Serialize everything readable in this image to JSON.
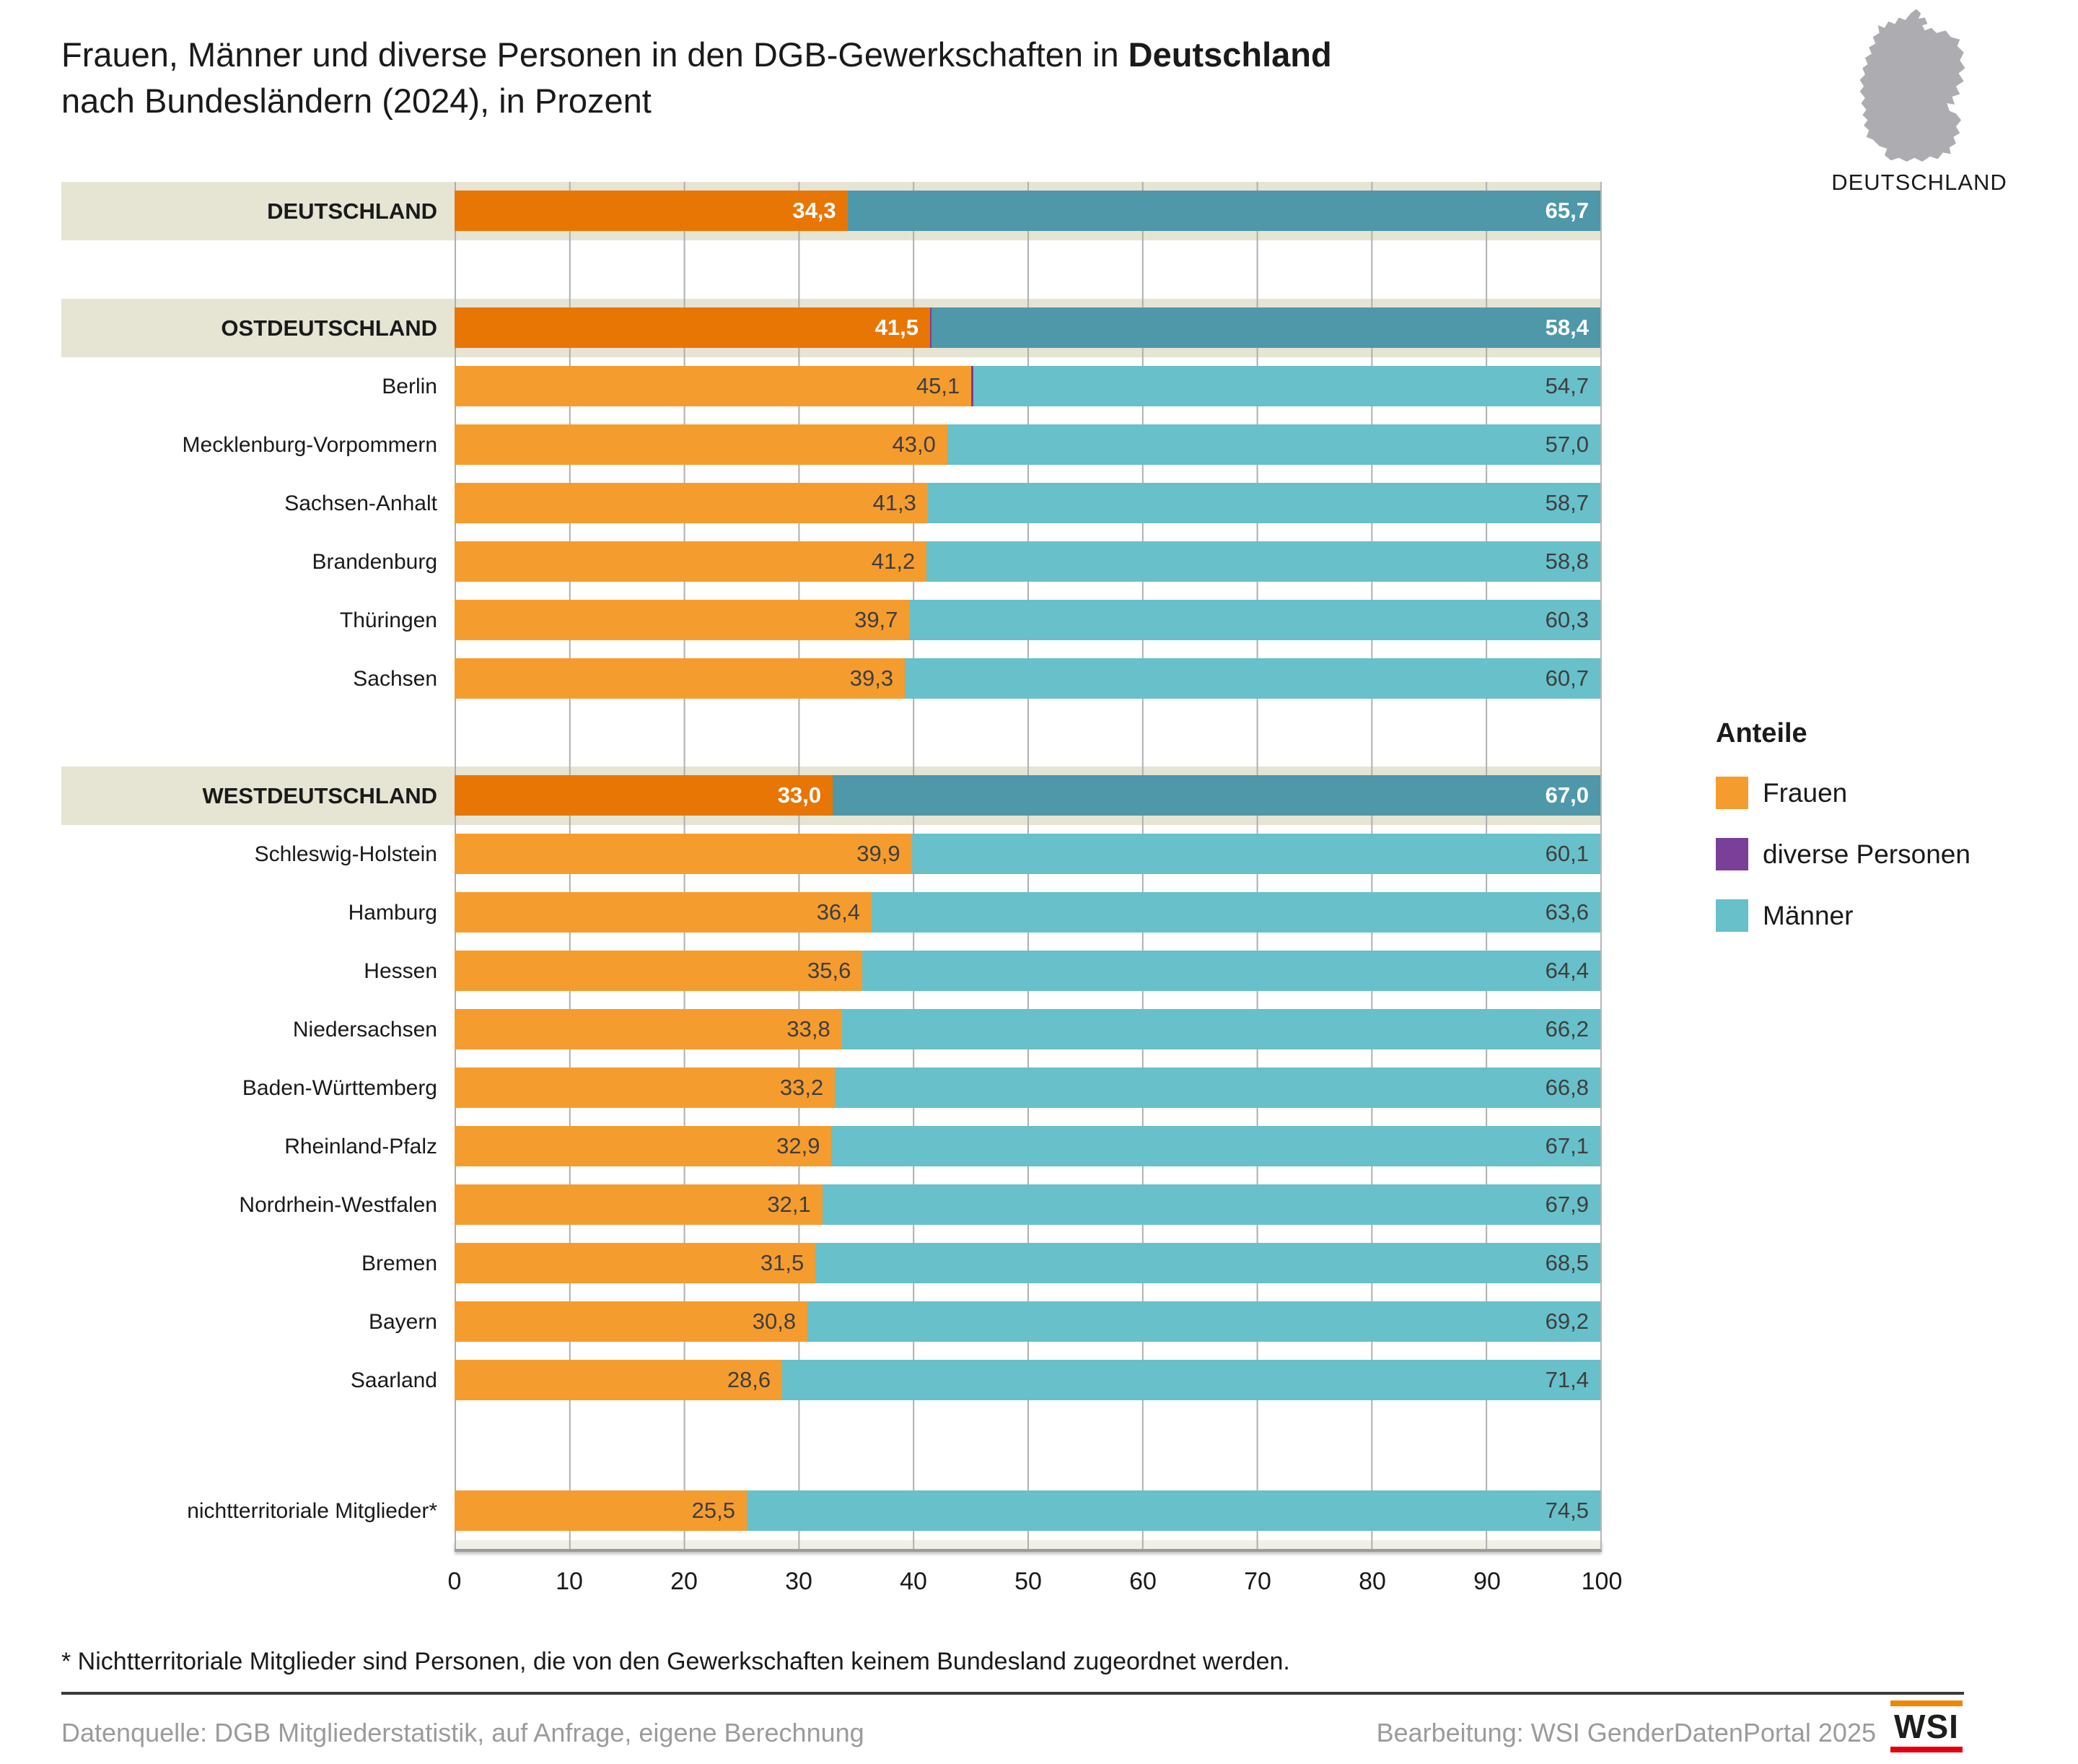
{
  "title": {
    "line1_prefix": "Frauen, Männer und diverse Personen in den DGB-Gewerkschaften in ",
    "line1_bold": "Deutschland",
    "line2": "nach Bundesländern (2024), in Prozent"
  },
  "map": {
    "label": "DEUTSCHLAND"
  },
  "legend": {
    "title": "Anteile",
    "items": [
      {
        "label": "Frauen",
        "color": "#F59C2F"
      },
      {
        "label": "diverse Personen",
        "color": "#7A3F98"
      },
      {
        "label": "Männer",
        "color": "#68C0CA"
      }
    ]
  },
  "axis": {
    "min": 0,
    "max": 100,
    "ticks": [
      "0",
      "10",
      "20",
      "30",
      "40",
      "50",
      "60",
      "70",
      "80",
      "90",
      "100"
    ]
  },
  "chart_data": {
    "type": "bar",
    "orientation": "horizontal",
    "stacked": true,
    "xlim": [
      0,
      100
    ],
    "series_names": [
      "Frauen",
      "diverse Personen",
      "Männer"
    ],
    "rows": [
      {
        "kind": "summary",
        "label": "DEUTSCHLAND",
        "frauen": 34.3,
        "diverse": 0.0,
        "maenner": 65.7,
        "frauen_label": "34,3",
        "maenner_label": "65,7"
      },
      {
        "kind": "spacer"
      },
      {
        "kind": "summary",
        "label": "OSTDEUTSCHLAND",
        "frauen": 41.5,
        "diverse": 0.1,
        "maenner": 58.4,
        "frauen_label": "41,5",
        "maenner_label": "58,4"
      },
      {
        "kind": "region",
        "label": "Berlin",
        "frauen": 45.1,
        "diverse": 0.2,
        "maenner": 54.7,
        "frauen_label": "45,1",
        "maenner_label": "54,7"
      },
      {
        "kind": "region",
        "label": "Mecklenburg-Vorpommern",
        "frauen": 43.0,
        "diverse": 0.0,
        "maenner": 57.0,
        "frauen_label": "43,0",
        "maenner_label": "57,0"
      },
      {
        "kind": "region",
        "label": "Sachsen-Anhalt",
        "frauen": 41.3,
        "diverse": 0.0,
        "maenner": 58.7,
        "frauen_label": "41,3",
        "maenner_label": "58,7"
      },
      {
        "kind": "region",
        "label": "Brandenburg",
        "frauen": 41.2,
        "diverse": 0.0,
        "maenner": 58.8,
        "frauen_label": "41,2",
        "maenner_label": "58,8"
      },
      {
        "kind": "region",
        "label": "Thüringen",
        "frauen": 39.7,
        "diverse": 0.0,
        "maenner": 60.3,
        "frauen_label": "39,7",
        "maenner_label": "60,3"
      },
      {
        "kind": "region",
        "label": "Sachsen",
        "frauen": 39.3,
        "diverse": 0.0,
        "maenner": 60.7,
        "frauen_label": "39,3",
        "maenner_label": "60,7"
      },
      {
        "kind": "spacer"
      },
      {
        "kind": "summary",
        "label": "WESTDEUTSCHLAND",
        "frauen": 33.0,
        "diverse": 0.0,
        "maenner": 67.0,
        "frauen_label": "33,0",
        "maenner_label": "67,0"
      },
      {
        "kind": "region",
        "label": "Schleswig-Holstein",
        "frauen": 39.9,
        "diverse": 0.0,
        "maenner": 60.1,
        "frauen_label": "39,9",
        "maenner_label": "60,1"
      },
      {
        "kind": "region",
        "label": "Hamburg",
        "frauen": 36.4,
        "diverse": 0.0,
        "maenner": 63.6,
        "frauen_label": "36,4",
        "maenner_label": "63,6"
      },
      {
        "kind": "region",
        "label": "Hessen",
        "frauen": 35.6,
        "diverse": 0.0,
        "maenner": 64.4,
        "frauen_label": "35,6",
        "maenner_label": "64,4"
      },
      {
        "kind": "region",
        "label": "Niedersachsen",
        "frauen": 33.8,
        "diverse": 0.0,
        "maenner": 66.2,
        "frauen_label": "33,8",
        "maenner_label": "66,2"
      },
      {
        "kind": "region",
        "label": "Baden-Württemberg",
        "frauen": 33.2,
        "diverse": 0.0,
        "maenner": 66.8,
        "frauen_label": "33,2",
        "maenner_label": "66,8"
      },
      {
        "kind": "region",
        "label": "Rheinland-Pfalz",
        "frauen": 32.9,
        "diverse": 0.0,
        "maenner": 67.1,
        "frauen_label": "32,9",
        "maenner_label": "67,1"
      },
      {
        "kind": "region",
        "label": "Nordrhein-Westfalen",
        "frauen": 32.1,
        "diverse": 0.0,
        "maenner": 67.9,
        "frauen_label": "32,1",
        "maenner_label": "67,9"
      },
      {
        "kind": "region",
        "label": "Bremen",
        "frauen": 31.5,
        "diverse": 0.0,
        "maenner": 68.5,
        "frauen_label": "31,5",
        "maenner_label": "68,5"
      },
      {
        "kind": "region",
        "label": "Bayern",
        "frauen": 30.8,
        "diverse": 0.0,
        "maenner": 69.2,
        "frauen_label": "30,8",
        "maenner_label": "69,2"
      },
      {
        "kind": "region",
        "label": "Saarland",
        "frauen": 28.6,
        "diverse": 0.0,
        "maenner": 71.4,
        "frauen_label": "28,6",
        "maenner_label": "71,4"
      },
      {
        "kind": "spacer_tall"
      },
      {
        "kind": "region",
        "label": "nichtterritoriale Mitglieder*",
        "frauen": 25.5,
        "diverse": 0.0,
        "maenner": 74.5,
        "frauen_label": "25,5",
        "maenner_label": "74,5"
      }
    ]
  },
  "footnote": {
    "text": "* Nichtterritoriale Mitglieder sind Personen, die von den Gewerkschaften keinem Bundesland zugeordnet werden."
  },
  "footer": {
    "source": "Datenquelle: DGB Mitgliederstatistik, auf Anfrage, eigene Berechnung",
    "credit": "Bearbeitung: WSI GenderDatenPortal 2025",
    "logo_text": "WSI"
  },
  "colors": {
    "frauen": "#F59C2F",
    "frauen_dark": "#E87604",
    "maenner": "#68C0CA",
    "maenner_dark": "#4E98AA",
    "diverse": "#7A3F98",
    "band": "#E6E4D3",
    "grid": "#AFAFAF",
    "axis_line": "#9C9C9C",
    "axis_strip": "#F1F0E7",
    "value_dark": "#3E3E3D",
    "footer_gray": "#9B9B9A",
    "map_gray": "#ACACB1",
    "logo_orange": "#F18700",
    "logo_red": "#E3000F"
  }
}
